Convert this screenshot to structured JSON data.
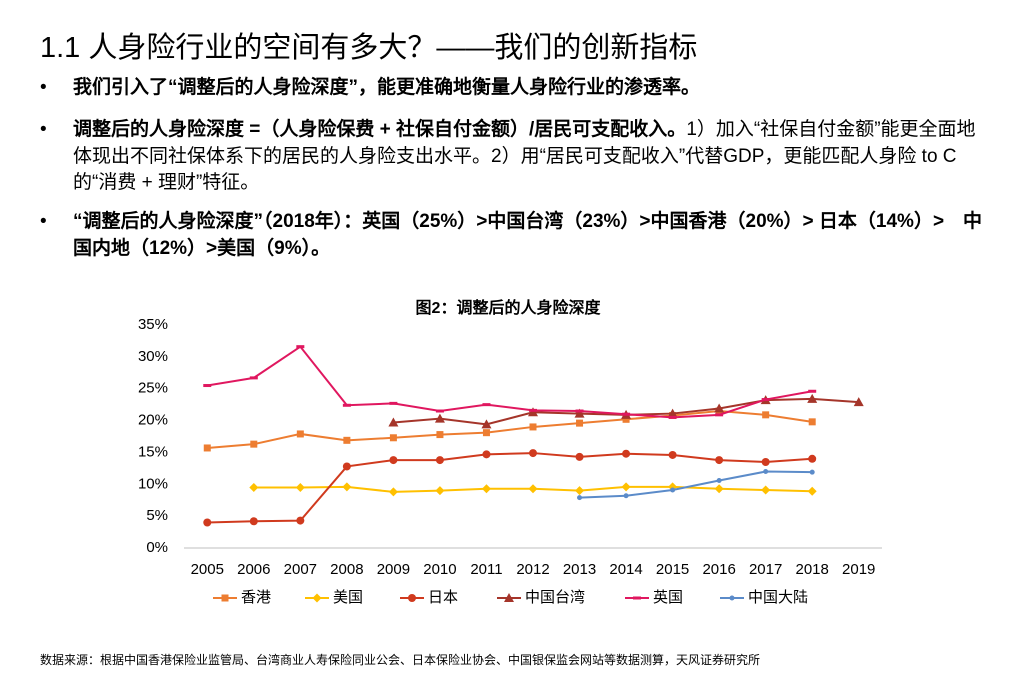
{
  "title": "1.1 人身险行业的空间有多大？——我们的创新指标",
  "bullets": [
    {
      "runs": [
        {
          "text": "我们引入了“调整后的人身险深度”，能更准确地衡量人身险行业的渗透率。",
          "bold": true
        }
      ]
    },
    {
      "runs": [
        {
          "text": "调整后的人身险深度 =（人身险保费 + 社保自付金额）/居民可支配收入。",
          "bold": true
        },
        {
          "text": "1）加入“社保自付金额”能更全面地体现出不同社保体系下的居民的人身险支出水平。2）用“居民可支配收入”代替GDP，更能匹配人身险 to C 的“消费 + 理财”特征。",
          "bold": false
        }
      ]
    },
    {
      "runs": [
        {
          "text": "“调整后的人身险深度”（2018年）：英国（25%）>中国台湾（23%）>中国香港（20%）> 日本（14%）>　中国内地（12%）>美国（9%）。",
          "bold": true
        }
      ]
    }
  ],
  "source": "数据来源：根据中国香港保险业监管局、台湾商业人寿保险同业公会、日本保险业协会、中国银保监会网站等数据测算，天风证券研究所",
  "chart_data": {
    "type": "line",
    "title": "图2：调整后的人身险深度",
    "categories": [
      "2005",
      "2006",
      "2007",
      "2008",
      "2009",
      "2010",
      "2011",
      "2012",
      "2013",
      "2014",
      "2015",
      "2016",
      "2017",
      "2018",
      "2019"
    ],
    "ylim": [
      0,
      35
    ],
    "yticks": [
      {
        "value": 0,
        "label": "0%"
      },
      {
        "value": 5,
        "label": "5%"
      },
      {
        "value": 10,
        "label": "10%"
      },
      {
        "value": 15,
        "label": "15%"
      },
      {
        "value": 20,
        "label": "20%"
      },
      {
        "value": 25,
        "label": "25%"
      },
      {
        "value": 30,
        "label": "30%"
      },
      {
        "value": 35,
        "label": "35%"
      }
    ],
    "grid": false,
    "legend": "bottom",
    "series": [
      {
        "name": "香港",
        "color": "#ED7D31",
        "marker": "square",
        "values": [
          15.7,
          16.3,
          17.9,
          16.9,
          17.3,
          17.8,
          18.1,
          19.0,
          19.6,
          20.2,
          20.8,
          21.5,
          20.9,
          19.8,
          null
        ]
      },
      {
        "name": "美国",
        "color": "#FFC000",
        "marker": "diamond",
        "values": [
          null,
          9.5,
          9.5,
          9.6,
          8.8,
          9.0,
          9.3,
          9.3,
          9.0,
          9.6,
          9.6,
          9.3,
          9.1,
          8.9,
          null
        ]
      },
      {
        "name": "日本",
        "color": "#D03A1E",
        "marker": "circle",
        "values": [
          4.0,
          4.2,
          4.3,
          12.8,
          13.8,
          13.8,
          14.7,
          14.9,
          14.3,
          14.8,
          14.6,
          13.8,
          13.5,
          14.0,
          null
        ]
      },
      {
        "name": "中国台湾",
        "color": "#A5352A",
        "marker": "triangle",
        "values": [
          null,
          null,
          null,
          null,
          19.7,
          20.3,
          19.4,
          21.3,
          21.1,
          20.9,
          21.1,
          21.9,
          23.2,
          23.4,
          22.9
        ]
      },
      {
        "name": "英国",
        "color": "#E0175F",
        "marker": "dash",
        "values": [
          25.5,
          26.7,
          31.6,
          22.4,
          22.7,
          21.5,
          22.5,
          21.6,
          21.5,
          21.0,
          20.5,
          20.9,
          23.3,
          24.6,
          null
        ]
      },
      {
        "name": "中国大陆",
        "color": "#5B8BC9",
        "marker": "dot",
        "values": [
          null,
          null,
          null,
          null,
          null,
          null,
          null,
          null,
          7.9,
          8.2,
          9.1,
          10.6,
          12.0,
          11.9,
          null
        ]
      }
    ]
  }
}
